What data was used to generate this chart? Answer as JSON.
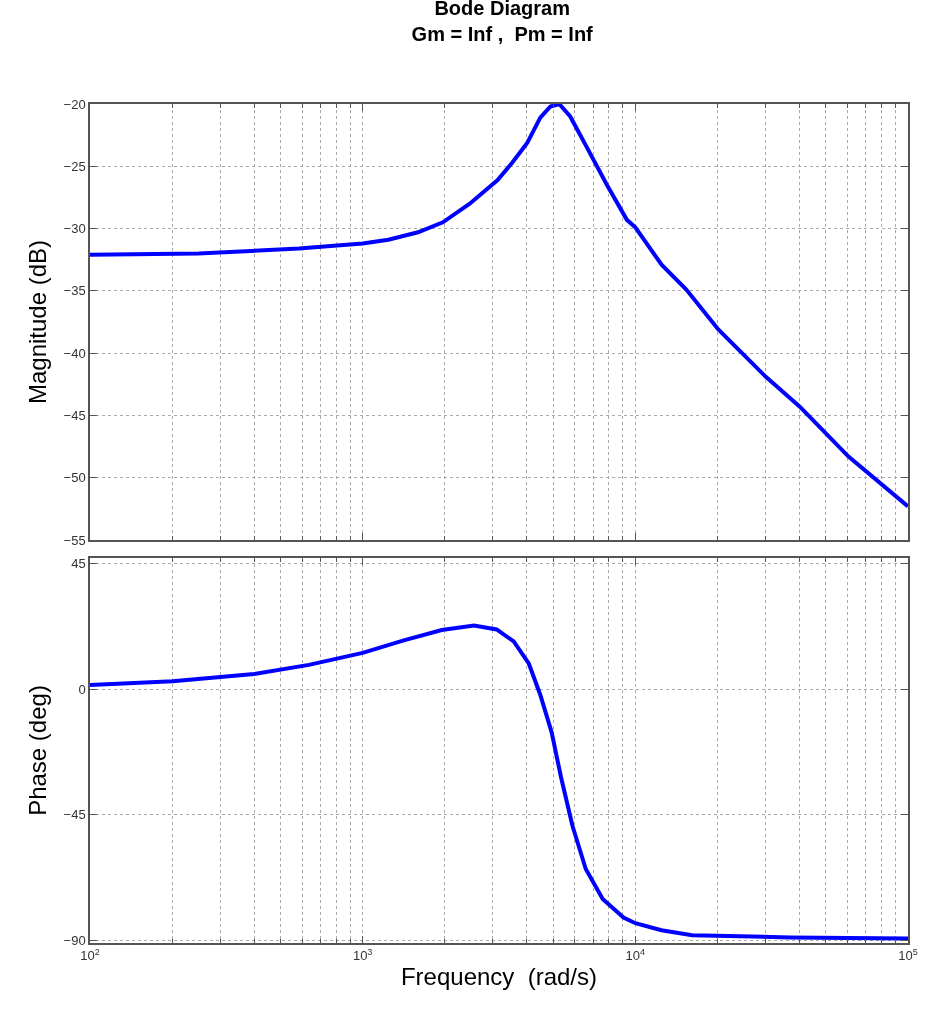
{
  "chart_data": [
    {
      "type": "line",
      "title": "Bode Diagram\nGm = Inf ,  Pm = Inf",
      "ylabel": "Magnitude (dB)",
      "log": "x",
      "grid": true,
      "line_style": "solid",
      "tick_labels": "y",
      "xlim": [
        100,
        100000
      ],
      "xticks": [
        {
          "value": 100,
          "label": "10$^{2}$"
        },
        {
          "value": 1000,
          "label": "10$^{3}$"
        },
        {
          "value": 10000,
          "label": "10$^{4}$"
        },
        {
          "value": 100000,
          "label": "10$^{5}$"
        }
      ],
      "ylim": [
        -55,
        -20
      ],
      "yticks": [
        -55,
        -50,
        -45,
        -40,
        -35,
        -30,
        -25,
        -20
      ],
      "series": [
        {
          "color": "#0000ff",
          "x": [
            100,
            250,
            584,
            1000,
            1242,
            1596,
            1968,
            2470,
            3125,
            3540,
            4018,
            4482,
            4880,
            5260,
            5770,
            6650,
            7870,
            9310,
            10000,
            12480,
            15380,
            20150,
            30100,
            40100,
            60500,
            100000
          ],
          "values": [
            -32.1,
            -32.0,
            -31.6,
            -31.2,
            -30.9,
            -30.3,
            -29.5,
            -28.0,
            -26.1,
            -24.7,
            -23.1,
            -21.1,
            -20.2,
            -20.0,
            -21.0,
            -23.5,
            -26.5,
            -29.3,
            -29.9,
            -32.9,
            -34.9,
            -38.1,
            -41.9,
            -44.3,
            -48.3,
            -52.3
          ]
        }
      ]
    },
    {
      "type": "line",
      "xlabel": "Frequency  (rad/s)",
      "ylabel": "Phase (deg)",
      "log": "x",
      "grid": true,
      "line_style": "solid",
      "xlim": [
        100,
        100000
      ],
      "xticks": [
        {
          "value": 100,
          "label": "10$^{2}$"
        },
        {
          "value": 1000,
          "label": "10$^{3}$"
        },
        {
          "value": 10000,
          "label": "10$^{4}$"
        },
        {
          "value": 100000,
          "label": "10$^{5}$"
        }
      ],
      "ylim": [
        -91,
        47
      ],
      "yticks": [
        -90,
        -45,
        0,
        45
      ],
      "series": [
        {
          "color": "#0000ff",
          "x": [
            100,
            201,
            400,
            635,
            1000,
            1415,
            1950,
            2560,
            3100,
            3580,
            4070,
            4480,
            4930,
            5340,
            5880,
            6580,
            7590,
            9050,
            10000,
            12470,
            16150,
            37100,
            100000
          ],
          "values": [
            1.5,
            2.8,
            5.4,
            8.7,
            13.0,
            17.5,
            21.2,
            22.8,
            21.4,
            17.1,
            9.1,
            -2.0,
            -15.4,
            -31.6,
            -49.0,
            -64.5,
            -75.2,
            -81.9,
            -83.9,
            -86.4,
            -88.2,
            -89.0,
            -89.4
          ]
        }
      ]
    }
  ]
}
